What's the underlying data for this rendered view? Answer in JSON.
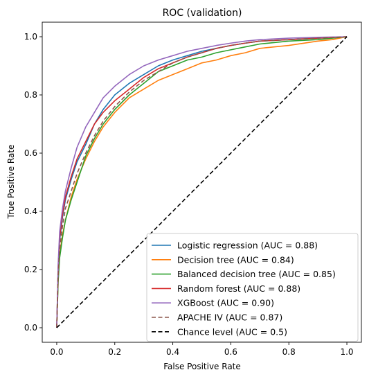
{
  "chart_data": {
    "type": "line",
    "title": "ROC (validation)",
    "xlabel": "False Positive Rate",
    "ylabel": "True Positive Rate",
    "xlim": [
      -0.05,
      1.05
    ],
    "ylim": [
      -0.05,
      1.05
    ],
    "xticks": [
      {
        "value": 0.0,
        "label": "0.0"
      },
      {
        "value": 0.2,
        "label": "0.2"
      },
      {
        "value": 0.4,
        "label": "0.4"
      },
      {
        "value": 0.6,
        "label": "0.6"
      },
      {
        "value": 0.8,
        "label": "0.8"
      },
      {
        "value": 1.0,
        "label": "1.0"
      }
    ],
    "yticks": [
      {
        "value": 0.0,
        "label": "0.0"
      },
      {
        "value": 0.2,
        "label": "0.2"
      },
      {
        "value": 0.4,
        "label": "0.4"
      },
      {
        "value": 0.6,
        "label": "0.6"
      },
      {
        "value": 0.8,
        "label": "0.8"
      },
      {
        "value": 1.0,
        "label": "1.0"
      }
    ],
    "grid": false,
    "legend_position": "lower right",
    "series": [
      {
        "name": "Logistic regression (AUC = 0.88)",
        "color": "#1f77b4",
        "dash": "solid",
        "x": [
          0,
          0.005,
          0.01,
          0.02,
          0.03,
          0.05,
          0.07,
          0.1,
          0.13,
          0.16,
          0.2,
          0.25,
          0.3,
          0.35,
          0.4,
          0.45,
          0.5,
          0.55,
          0.6,
          0.65,
          0.7,
          0.8,
          0.9,
          1.0
        ],
        "y": [
          0,
          0.2,
          0.3,
          0.38,
          0.44,
          0.51,
          0.57,
          0.63,
          0.7,
          0.75,
          0.8,
          0.84,
          0.87,
          0.9,
          0.92,
          0.935,
          0.95,
          0.96,
          0.97,
          0.978,
          0.985,
          0.99,
          0.995,
          1.0
        ]
      },
      {
        "name": "Decision tree (AUC = 0.84)",
        "color": "#ff7f0e",
        "dash": "solid",
        "x": [
          0,
          0.005,
          0.01,
          0.02,
          0.03,
          0.05,
          0.07,
          0.1,
          0.13,
          0.16,
          0.2,
          0.25,
          0.3,
          0.35,
          0.4,
          0.45,
          0.5,
          0.55,
          0.6,
          0.65,
          0.7,
          0.8,
          0.9,
          0.95,
          1.0
        ],
        "y": [
          0,
          0.17,
          0.25,
          0.32,
          0.37,
          0.45,
          0.51,
          0.58,
          0.64,
          0.69,
          0.74,
          0.79,
          0.82,
          0.85,
          0.87,
          0.89,
          0.91,
          0.92,
          0.935,
          0.945,
          0.96,
          0.97,
          0.985,
          0.99,
          1.0
        ]
      },
      {
        "name": "Balanced decision tree (AUC = 0.85)",
        "color": "#2ca02c",
        "dash": "solid",
        "x": [
          0,
          0.005,
          0.01,
          0.02,
          0.03,
          0.05,
          0.07,
          0.1,
          0.13,
          0.16,
          0.2,
          0.25,
          0.3,
          0.35,
          0.4,
          0.45,
          0.5,
          0.55,
          0.6,
          0.65,
          0.7,
          0.8,
          0.9,
          1.0
        ],
        "y": [
          0,
          0.16,
          0.24,
          0.31,
          0.37,
          0.44,
          0.5,
          0.59,
          0.65,
          0.7,
          0.75,
          0.8,
          0.84,
          0.88,
          0.9,
          0.92,
          0.93,
          0.945,
          0.955,
          0.965,
          0.975,
          0.985,
          0.99,
          1.0
        ]
      },
      {
        "name": "Random forest (AUC = 0.88)",
        "color": "#d62728",
        "dash": "solid",
        "x": [
          0,
          0.005,
          0.01,
          0.02,
          0.03,
          0.05,
          0.07,
          0.1,
          0.13,
          0.16,
          0.2,
          0.25,
          0.3,
          0.35,
          0.4,
          0.45,
          0.5,
          0.55,
          0.6,
          0.65,
          0.7,
          0.8,
          0.9,
          1.0
        ],
        "y": [
          0,
          0.21,
          0.31,
          0.39,
          0.45,
          0.52,
          0.58,
          0.64,
          0.7,
          0.74,
          0.78,
          0.82,
          0.86,
          0.89,
          0.91,
          0.93,
          0.945,
          0.96,
          0.97,
          0.978,
          0.985,
          0.99,
          0.995,
          1.0
        ]
      },
      {
        "name": "XGBoost (AUC = 0.90)",
        "color": "#9467bd",
        "dash": "solid",
        "x": [
          0,
          0.005,
          0.01,
          0.02,
          0.03,
          0.05,
          0.07,
          0.1,
          0.13,
          0.16,
          0.2,
          0.25,
          0.3,
          0.35,
          0.4,
          0.45,
          0.5,
          0.55,
          0.6,
          0.65,
          0.7,
          0.8,
          0.9,
          1.0
        ],
        "y": [
          0,
          0.22,
          0.33,
          0.41,
          0.47,
          0.55,
          0.62,
          0.69,
          0.74,
          0.79,
          0.83,
          0.87,
          0.9,
          0.92,
          0.935,
          0.95,
          0.96,
          0.97,
          0.978,
          0.985,
          0.99,
          0.995,
          0.998,
          1.0
        ]
      },
      {
        "name": "APACHE IV (AUC = 0.87)",
        "color": "#8c564b",
        "dash": "dashed",
        "x": [
          0,
          0.005,
          0.01,
          0.02,
          0.03,
          0.05,
          0.07,
          0.1,
          0.13,
          0.16,
          0.2,
          0.25,
          0.3,
          0.35,
          0.4,
          0.45,
          0.5,
          0.55,
          0.6,
          0.65,
          0.7,
          0.8,
          0.9,
          1.0
        ],
        "y": [
          0,
          0.18,
          0.27,
          0.35,
          0.41,
          0.47,
          0.53,
          0.6,
          0.66,
          0.71,
          0.76,
          0.81,
          0.85,
          0.88,
          0.91,
          0.93,
          0.945,
          0.96,
          0.97,
          0.978,
          0.985,
          0.99,
          0.995,
          1.0
        ]
      },
      {
        "name": "Chance level (AUC = 0.5)",
        "color": "#000000",
        "dash": "dashed",
        "x": [
          0,
          1
        ],
        "y": [
          0,
          1
        ]
      }
    ]
  }
}
